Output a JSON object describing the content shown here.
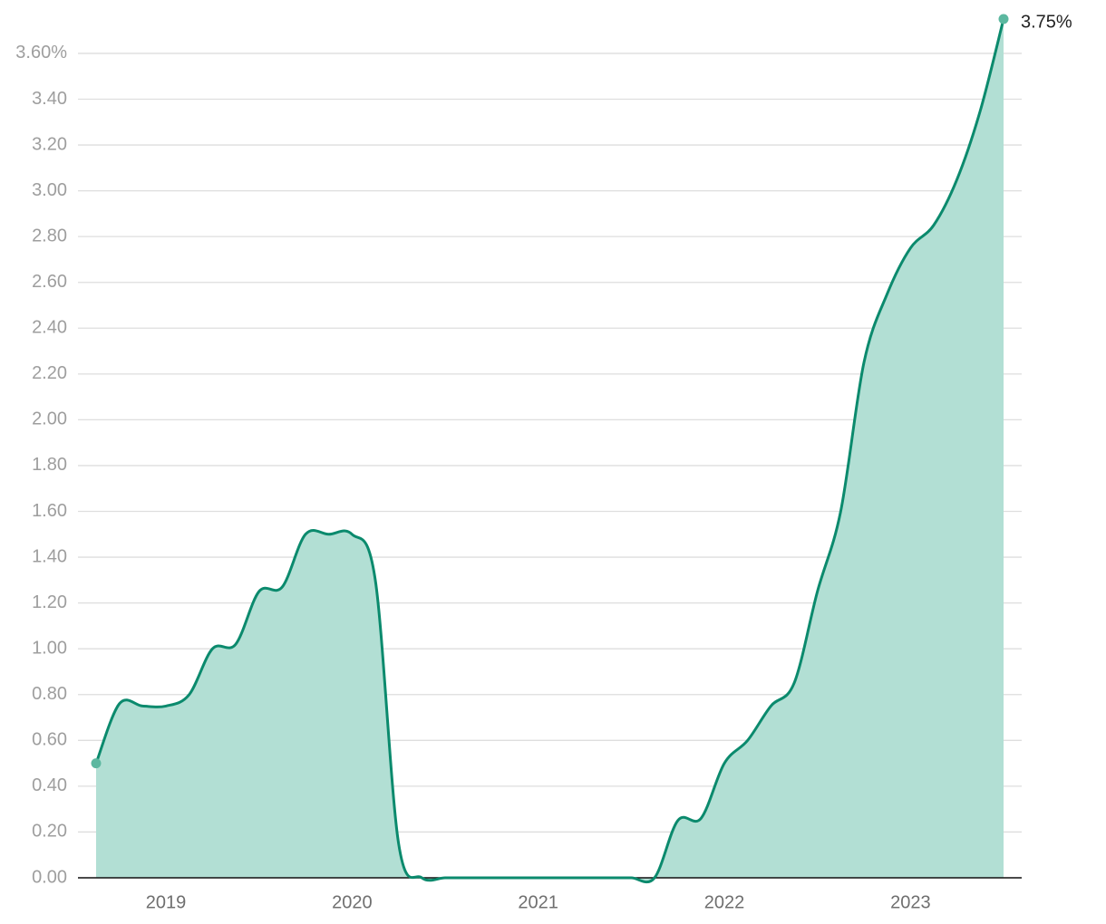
{
  "chart_data": {
    "type": "area",
    "categories": [
      null,
      null,
      null,
      "2019",
      null,
      null,
      null,
      null,
      null,
      null,
      null,
      "2020",
      null,
      null,
      null,
      null,
      null,
      null,
      null,
      "2021",
      null,
      null,
      null,
      null,
      null,
      null,
      null,
      "2022",
      null,
      null,
      null,
      null,
      null,
      null,
      null,
      "2023",
      null,
      null,
      null,
      null
    ],
    "series": [
      {
        "color": "#0b8a6d",
        "fill": "#b2dfd4",
        "values": [
          0.5,
          0.76,
          0.75,
          0.75,
          0.8,
          1.0,
          1.02,
          1.25,
          1.27,
          1.5,
          1.5,
          1.5,
          1.3,
          0.15,
          0.0,
          0.0,
          0.0,
          0.0,
          0.0,
          0.0,
          0.0,
          0.0,
          0.0,
          0.0,
          0.0,
          0.25,
          0.26,
          0.5,
          0.6,
          0.75,
          0.85,
          1.25,
          1.6,
          2.25,
          2.55,
          2.75,
          2.85,
          3.05,
          3.35,
          3.75
        ],
        "value_labels": [
          null,
          null,
          null,
          null,
          null,
          null,
          null,
          null,
          null,
          null,
          null,
          null,
          null,
          null,
          null,
          null,
          null,
          null,
          null,
          null,
          null,
          null,
          null,
          null,
          null,
          null,
          null,
          null,
          null,
          null,
          null,
          null,
          null,
          null,
          null,
          null,
          null,
          null,
          null,
          "3.75%"
        ]
      }
    ],
    "ylim": [
      0,
      3.75
    ],
    "yticks": [
      {
        "value": 0,
        "label": "0.00"
      },
      {
        "value": 0.2,
        "label": "0.20"
      },
      {
        "value": 0.4,
        "label": "0.40"
      },
      {
        "value": 0.6,
        "label": "0.60"
      },
      {
        "value": 0.8,
        "label": "0.80"
      },
      {
        "value": 1.0,
        "label": "1.00"
      },
      {
        "value": 1.2,
        "label": "1.20"
      },
      {
        "value": 1.4,
        "label": "1.40"
      },
      {
        "value": 1.6,
        "label": "1.60"
      },
      {
        "value": 1.8,
        "label": "1.80"
      },
      {
        "value": 2.0,
        "label": "2.00"
      },
      {
        "value": 2.2,
        "label": "2.20"
      },
      {
        "value": 2.4,
        "label": "2.40"
      },
      {
        "value": 2.6,
        "label": "2.60"
      },
      {
        "value": 2.8,
        "label": "2.80"
      },
      {
        "value": 3.0,
        "label": "3.00"
      },
      {
        "value": 3.2,
        "label": "3.20"
      },
      {
        "value": 3.4,
        "label": "3.40"
      },
      {
        "value": 3.6,
        "label": "3.60%"
      }
    ],
    "grid": true
  }
}
